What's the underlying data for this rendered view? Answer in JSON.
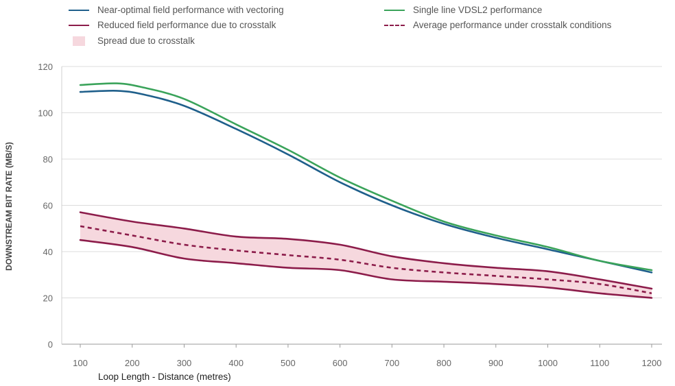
{
  "chart_data": {
    "type": "line",
    "title": "",
    "xlabel": "Loop Length - Distance (metres)",
    "ylabel": "DOWNSTREAM BIT RATE (MB/S)",
    "xlim": [
      100,
      1200
    ],
    "ylim": [
      0,
      120
    ],
    "x_ticks": [
      "100",
      "200",
      "300",
      "400",
      "500",
      "600",
      "700",
      "800",
      "900",
      "1000",
      "1100",
      "1200"
    ],
    "y_ticks": [
      "0",
      "20",
      "40",
      "60",
      "80",
      "100",
      "120"
    ],
    "grid": "horizontal",
    "legend": [
      {
        "label": "Near-optimal field performance with vectoring",
        "style": "line",
        "color": "#1f5f8b"
      },
      {
        "label": "Single line VDSL2 performance",
        "style": "line",
        "color": "#3aa35a"
      },
      {
        "label": "Reduced field performance due to crosstalk",
        "style": "line",
        "color": "#8c1c4a"
      },
      {
        "label": "Average performance under crosstalk conditions",
        "style": "dashed",
        "color": "#8c1c4a"
      },
      {
        "label": "Spread due to crosstalk",
        "style": "area",
        "color": "#f6d8de"
      }
    ],
    "series": [
      {
        "name": "Near-optimal field performance with vectoring",
        "color": "#1f5f8b",
        "style": "solid",
        "x": [
          100,
          170,
          220,
          300,
          400,
          500,
          600,
          700,
          800,
          900,
          1000,
          1100,
          1200
        ],
        "y": [
          109,
          109.5,
          108,
          103,
          93,
          82,
          70,
          60,
          52,
          46,
          41,
          36,
          31
        ]
      },
      {
        "name": "Single line VDSL2 performance",
        "color": "#3aa35a",
        "style": "solid",
        "x": [
          100,
          170,
          220,
          300,
          400,
          500,
          600,
          700,
          800,
          900,
          1000,
          1100,
          1200
        ],
        "y": [
          112,
          112.7,
          111,
          106,
          95,
          84,
          72,
          62,
          53,
          47,
          42,
          36,
          32
        ]
      },
      {
        "name": "Reduced field performance due to crosstalk (upper)",
        "color": "#8c1c4a",
        "style": "solid",
        "x": [
          100,
          200,
          300,
          400,
          500,
          600,
          700,
          800,
          900,
          1000,
          1100,
          1200
        ],
        "y": [
          57,
          53,
          50,
          46.5,
          45.5,
          43,
          38,
          35,
          33,
          31.5,
          28,
          24
        ]
      },
      {
        "name": "Reduced field performance due to crosstalk (lower)",
        "color": "#8c1c4a",
        "style": "solid",
        "x": [
          100,
          200,
          300,
          400,
          500,
          600,
          700,
          800,
          900,
          1000,
          1100,
          1200
        ],
        "y": [
          45,
          42,
          37,
          35,
          33,
          32,
          28,
          27,
          26,
          24.5,
          22,
          20
        ]
      },
      {
        "name": "Average performance under crosstalk conditions",
        "color": "#8c1c4a",
        "style": "dashed",
        "x": [
          100,
          200,
          300,
          400,
          500,
          600,
          700,
          800,
          900,
          1000,
          1100,
          1200
        ],
        "y": [
          51,
          47,
          43,
          40.5,
          38.5,
          36.5,
          33,
          31,
          29.5,
          28,
          26,
          22
        ]
      }
    ]
  }
}
